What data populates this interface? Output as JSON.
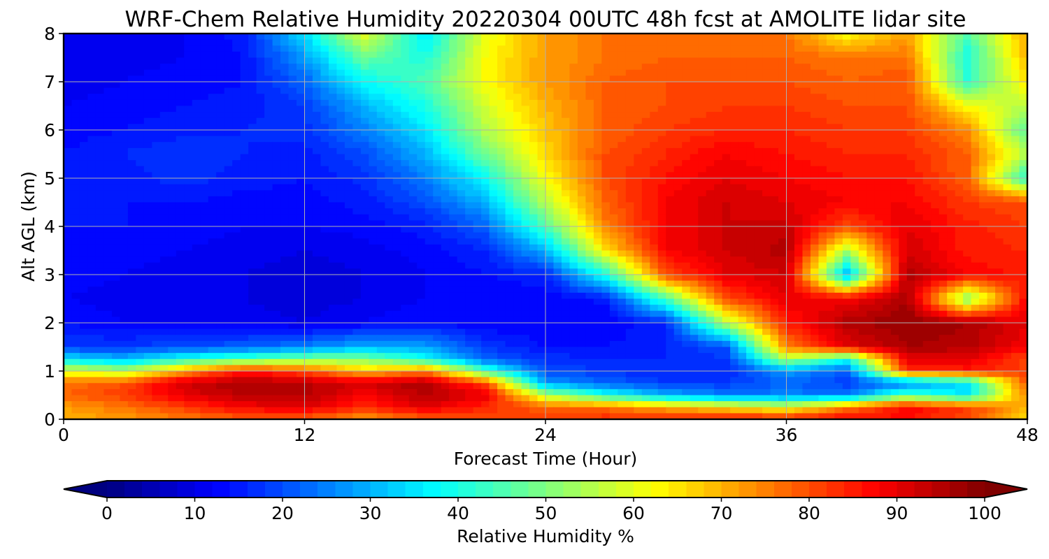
{
  "chart_data": {
    "type": "heatmap",
    "title": "WRF-Chem Relative Humidity 20220304 00UTC 48h fcst at AMOLITE lidar site",
    "xlabel": "Forecast Time (Hour)",
    "ylabel": "Alt AGL (km)",
    "xlim": [
      0,
      48
    ],
    "ylim": [
      0,
      8
    ],
    "x_ticks": [
      0,
      12,
      24,
      36,
      48
    ],
    "x_tick_labels": [
      "0",
      "12",
      "24",
      "36",
      "48"
    ],
    "y_ticks": [
      0,
      1,
      2,
      3,
      4,
      5,
      6,
      7,
      8
    ],
    "y_tick_labels": [
      "0",
      "1",
      "2",
      "3",
      "4",
      "5",
      "6",
      "7",
      "8"
    ],
    "grid": true,
    "colormap": "jet",
    "colorbar": {
      "label": "Relative Humidity %",
      "range": [
        0,
        100
      ],
      "extend": "both",
      "ticks": [
        0,
        10,
        20,
        30,
        40,
        50,
        60,
        70,
        80,
        90,
        100
      ],
      "tick_labels": [
        "0",
        "10",
        "20",
        "30",
        "40",
        "50",
        "60",
        "70",
        "80",
        "90",
        "100"
      ]
    },
    "x": [
      0,
      3,
      6,
      9,
      12,
      15,
      18,
      21,
      24,
      27,
      30,
      33,
      36,
      39,
      42,
      45,
      48
    ],
    "y": [
      0,
      0.25,
      0.5,
      0.75,
      1.0,
      1.25,
      1.5,
      2,
      2.5,
      3,
      3.5,
      4,
      4.5,
      5,
      5.5,
      6,
      6.5,
      7,
      7.5,
      8
    ],
    "z": [
      [
        70,
        72,
        75,
        78,
        78,
        72,
        78,
        80,
        82,
        84,
        85,
        86,
        86,
        88,
        86,
        80,
        65
      ],
      [
        72,
        76,
        82,
        88,
        90,
        84,
        90,
        84,
        78,
        76,
        70,
        65,
        60,
        75,
        88,
        82,
        70
      ],
      [
        78,
        82,
        90,
        95,
        95,
        88,
        95,
        90,
        55,
        40,
        30,
        25,
        25,
        25,
        45,
        35,
        75
      ],
      [
        76,
        80,
        92,
        96,
        94,
        92,
        96,
        80,
        28,
        22,
        18,
        18,
        22,
        18,
        25,
        35,
        80
      ],
      [
        60,
        55,
        72,
        85,
        80,
        68,
        75,
        45,
        20,
        18,
        16,
        16,
        28,
        22,
        82,
        85,
        82
      ],
      [
        35,
        30,
        40,
        45,
        50,
        50,
        40,
        22,
        17,
        16,
        16,
        18,
        55,
        40,
        90,
        90,
        80
      ],
      [
        18,
        18,
        20,
        22,
        25,
        30,
        28,
        18,
        14,
        14,
        16,
        20,
        75,
        90,
        96,
        95,
        88
      ],
      [
        14,
        12,
        12,
        11,
        10,
        12,
        14,
        12,
        12,
        12,
        16,
        55,
        85,
        95,
        98,
        96,
        90
      ],
      [
        12,
        11,
        10,
        10,
        9,
        10,
        12,
        12,
        12,
        15,
        45,
        80,
        90,
        88,
        96,
        50,
        88
      ],
      [
        13,
        12,
        11,
        10,
        9,
        10,
        12,
        14,
        16,
        40,
        80,
        90,
        92,
        30,
        95,
        88,
        85
      ],
      [
        13,
        13,
        12,
        11,
        10,
        11,
        13,
        16,
        30,
        65,
        88,
        92,
        95,
        55,
        92,
        85,
        84
      ],
      [
        14,
        14,
        13,
        12,
        12,
        13,
        15,
        22,
        45,
        75,
        88,
        92,
        93,
        80,
        90,
        85,
        82
      ],
      [
        14,
        14,
        14,
        13,
        13,
        15,
        20,
        30,
        55,
        78,
        88,
        92,
        90,
        88,
        88,
        82,
        80
      ],
      [
        15,
        15,
        17,
        15,
        14,
        17,
        25,
        38,
        62,
        80,
        86,
        90,
        88,
        86,
        86,
        78,
        40
      ],
      [
        14,
        16,
        18,
        16,
        15,
        20,
        30,
        48,
        66,
        80,
        84,
        88,
        86,
        84,
        84,
        78,
        55
      ],
      [
        13,
        14,
        15,
        16,
        17,
        25,
        35,
        55,
        68,
        78,
        82,
        84,
        84,
        82,
        82,
        74,
        45
      ],
      [
        12,
        13,
        14,
        15,
        18,
        30,
        40,
        58,
        70,
        78,
        80,
        82,
        82,
        80,
        80,
        62,
        55
      ],
      [
        11,
        12,
        13,
        14,
        22,
        38,
        45,
        62,
        72,
        78,
        80,
        80,
        80,
        78,
        80,
        42,
        65
      ],
      [
        10,
        11,
        12,
        14,
        28,
        48,
        40,
        62,
        72,
        76,
        78,
        78,
        78,
        76,
        76,
        40,
        70
      ],
      [
        10,
        11,
        12,
        15,
        35,
        60,
        35,
        60,
        72,
        76,
        76,
        76,
        76,
        62,
        72,
        45,
        72
      ]
    ]
  }
}
